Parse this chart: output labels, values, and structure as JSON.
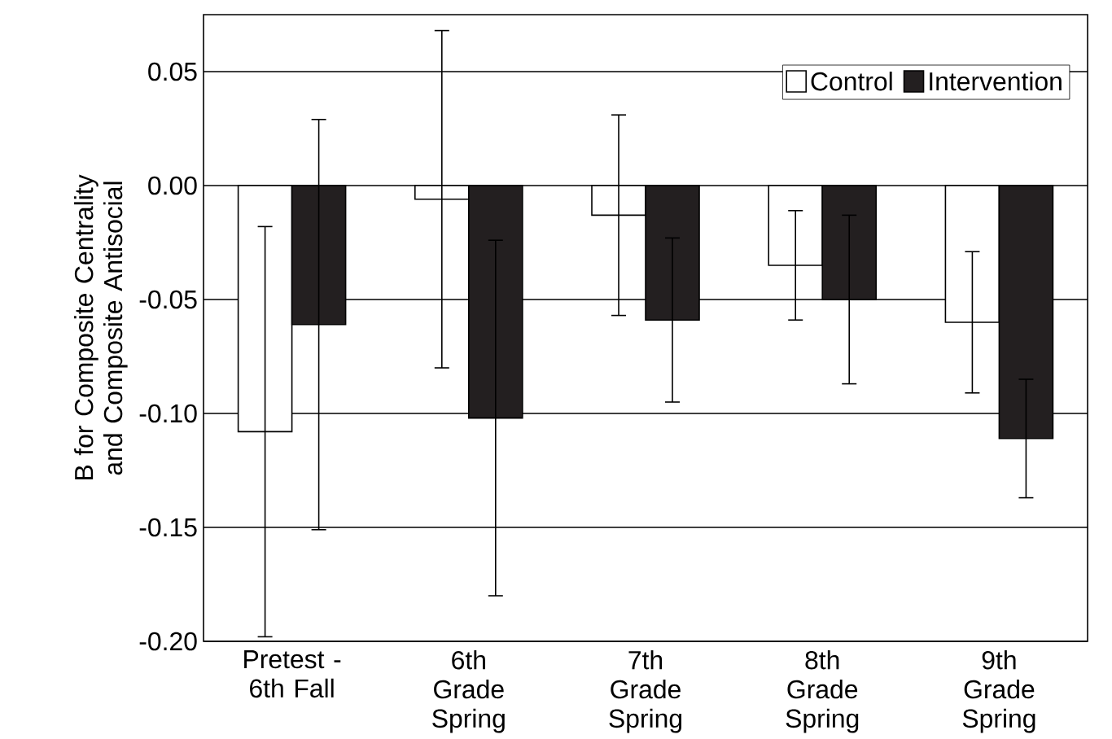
{
  "chart_data": {
    "type": "bar",
    "ylabel": "B for Composite Centrality and Composite Antisocial",
    "categories": [
      "Pretest - 6th Fall",
      "6th Grade Spring",
      "7th Grade Spring",
      "8th Grade Spring",
      "9th Grade Spring"
    ],
    "series": [
      {
        "name": "Control",
        "color": "#ffffff",
        "values": [
          -0.108,
          -0.006,
          -0.013,
          -0.035,
          -0.06
        ],
        "errors": [
          0.09,
          0.074,
          0.044,
          0.024,
          0.031
        ]
      },
      {
        "name": "Intervention",
        "color": "#231f20",
        "values": [
          -0.061,
          -0.102,
          -0.059,
          -0.05,
          -0.111
        ],
        "errors": [
          0.09,
          0.078,
          0.036,
          0.037,
          0.026
        ]
      }
    ],
    "ylim": [
      -0.2,
      0.075
    ],
    "yticks": [
      {
        "value": -0.2,
        "label": "-0.20"
      },
      {
        "value": -0.15,
        "label": "-0.15"
      },
      {
        "value": -0.1,
        "label": "-0.10"
      },
      {
        "value": -0.05,
        "label": "-0.05"
      },
      {
        "value": 0,
        "label": "0.00"
      },
      {
        "value": 0.05,
        "label": "0.05"
      }
    ],
    "grid": "y",
    "legend": "top right"
  }
}
